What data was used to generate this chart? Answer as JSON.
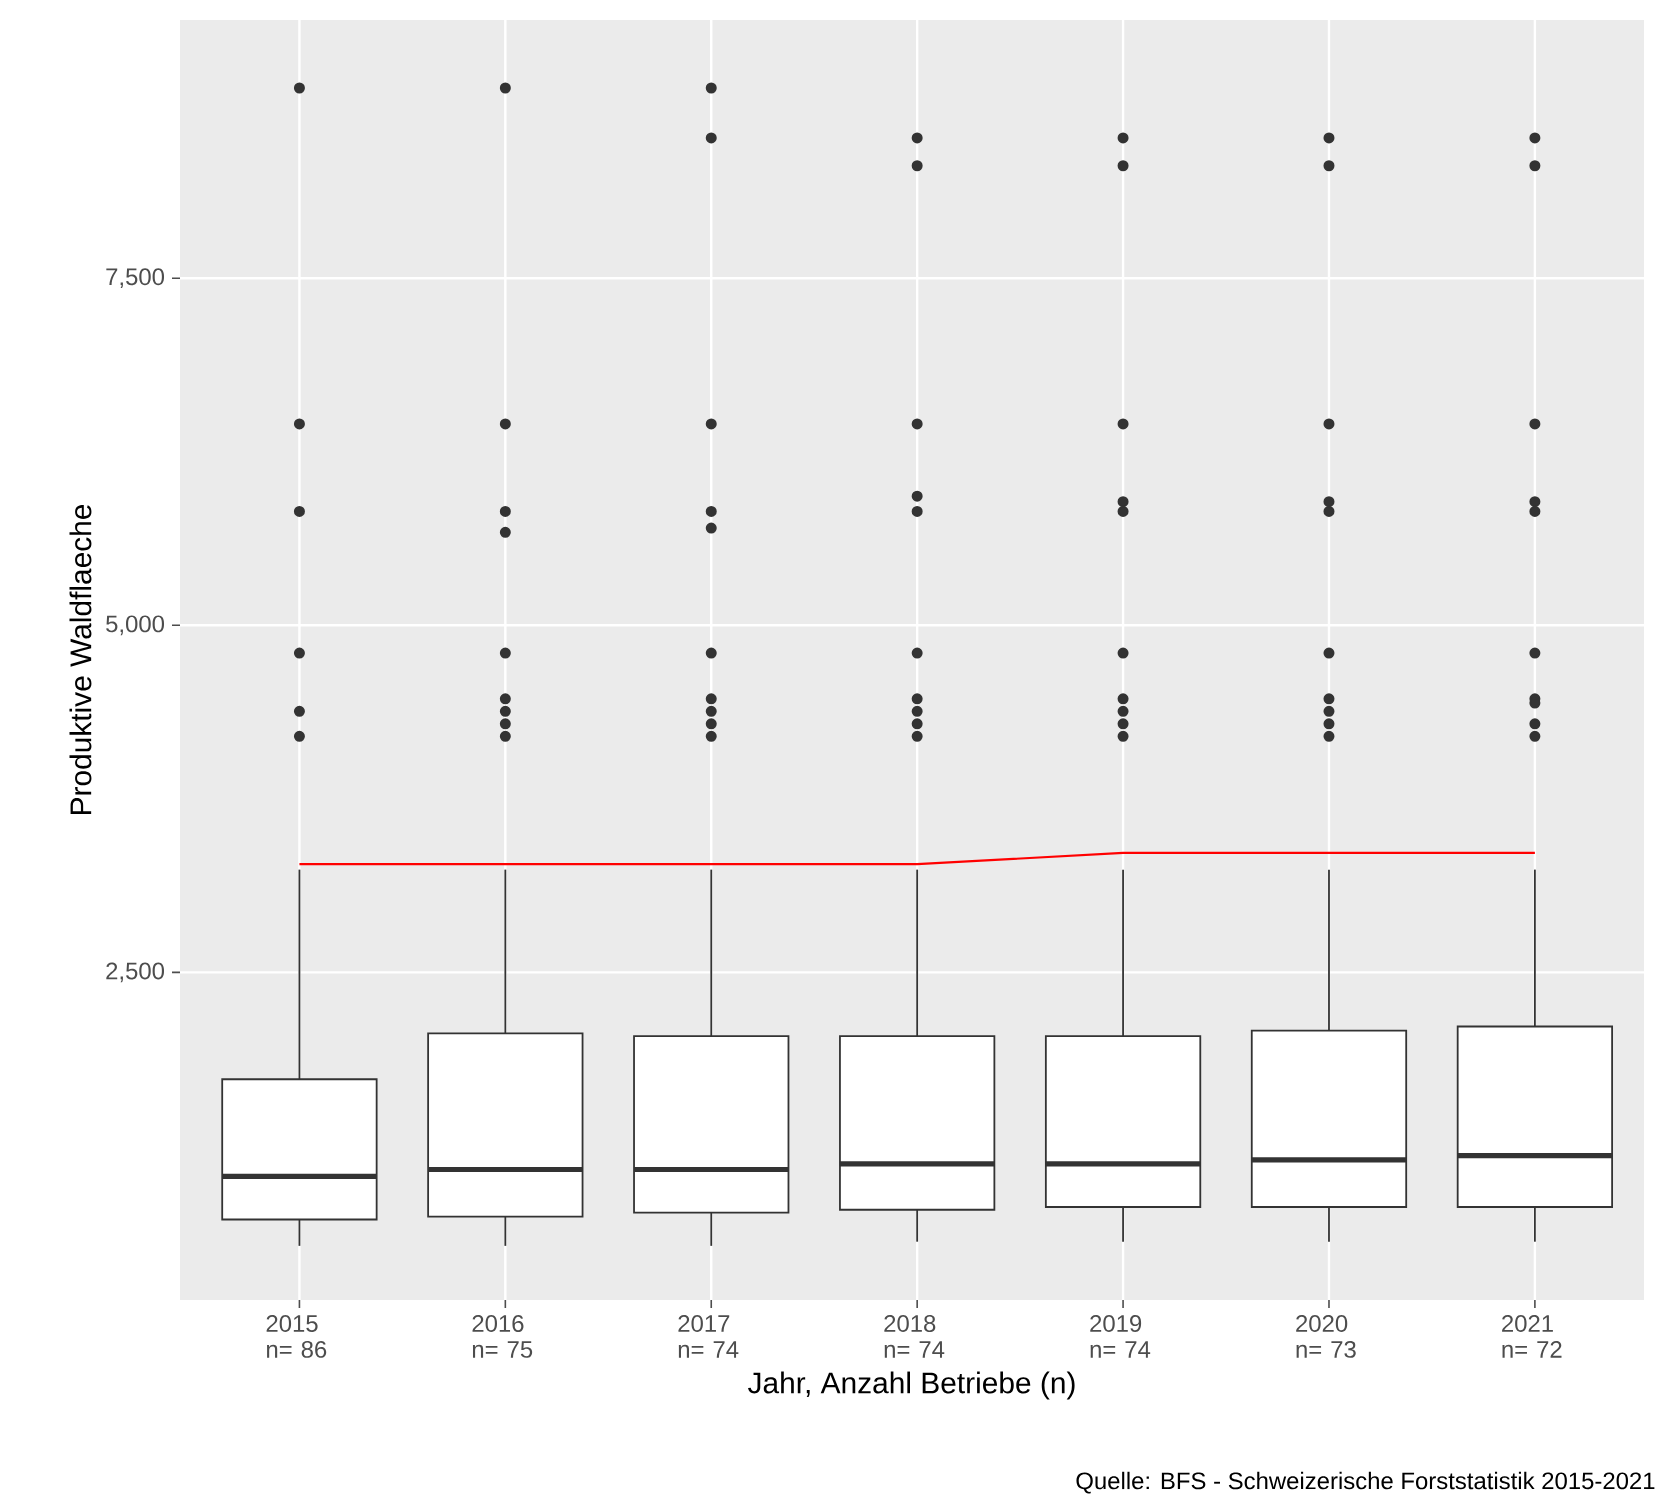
{
  "chart_data": {
    "type": "box",
    "categories": [
      "2015 n= 86",
      "2016 n= 75",
      "2017 n= 74",
      "2018 n= 74",
      "2019 n= 74",
      "2020 n= 73",
      "2021 n= 72"
    ],
    "boxes": [
      {
        "low": 530,
        "q1": 720,
        "median": 1030,
        "q3": 1730,
        "high": 3240,
        "outliers": [
          8870,
          6450,
          5820,
          4800,
          4380,
          4200
        ]
      },
      {
        "low": 530,
        "q1": 740,
        "median": 1080,
        "q3": 2060,
        "high": 3240,
        "outliers": [
          8870,
          6450,
          5820,
          5670,
          4800,
          4470,
          4380,
          4290,
          4200
        ]
      },
      {
        "low": 530,
        "q1": 770,
        "median": 1080,
        "q3": 2040,
        "high": 3240,
        "outliers": [
          8870,
          8510,
          6450,
          5820,
          5700,
          4800,
          4470,
          4380,
          4290,
          4200
        ]
      },
      {
        "low": 560,
        "q1": 790,
        "median": 1120,
        "q3": 2040,
        "high": 3240,
        "outliers": [
          8510,
          8310,
          6450,
          5930,
          5820,
          4800,
          4470,
          4380,
          4290,
          4200
        ]
      },
      {
        "low": 560,
        "q1": 810,
        "median": 1120,
        "q3": 2040,
        "high": 3240,
        "outliers": [
          8510,
          8310,
          6450,
          5890,
          5820,
          4800,
          4470,
          4380,
          4290,
          4200
        ]
      },
      {
        "low": 560,
        "q1": 810,
        "median": 1150,
        "q3": 2080,
        "high": 3240,
        "outliers": [
          8510,
          8310,
          6450,
          5890,
          5820,
          4800,
          4470,
          4380,
          4290,
          4200
        ]
      },
      {
        "low": 560,
        "q1": 810,
        "median": 1180,
        "q3": 2110,
        "high": 3240,
        "outliers": [
          8510,
          8310,
          6450,
          5890,
          5820,
          4800,
          4470,
          4440,
          4290,
          4200
        ]
      }
    ],
    "series": [
      {
        "type": "line",
        "color": "#ff0000",
        "values": [
          3280,
          3280,
          3280,
          3280,
          3360,
          3360,
          3360
        ]
      }
    ],
    "ylim": [
      140,
      9360
    ],
    "yticks": [
      {
        "value": 2500,
        "label": "2,500"
      },
      {
        "value": 5000,
        "label": "5,000"
      },
      {
        "value": 7500,
        "label": "7,500"
      }
    ],
    "grid": true,
    "xlabel": "Jahr, Anzahl Betriebe (n)",
    "ylabel": "Produktive Waldflaeche",
    "annotations": [
      "Quelle: BFS - Schweizerische Forststatistik 2015-2021"
    ]
  }
}
